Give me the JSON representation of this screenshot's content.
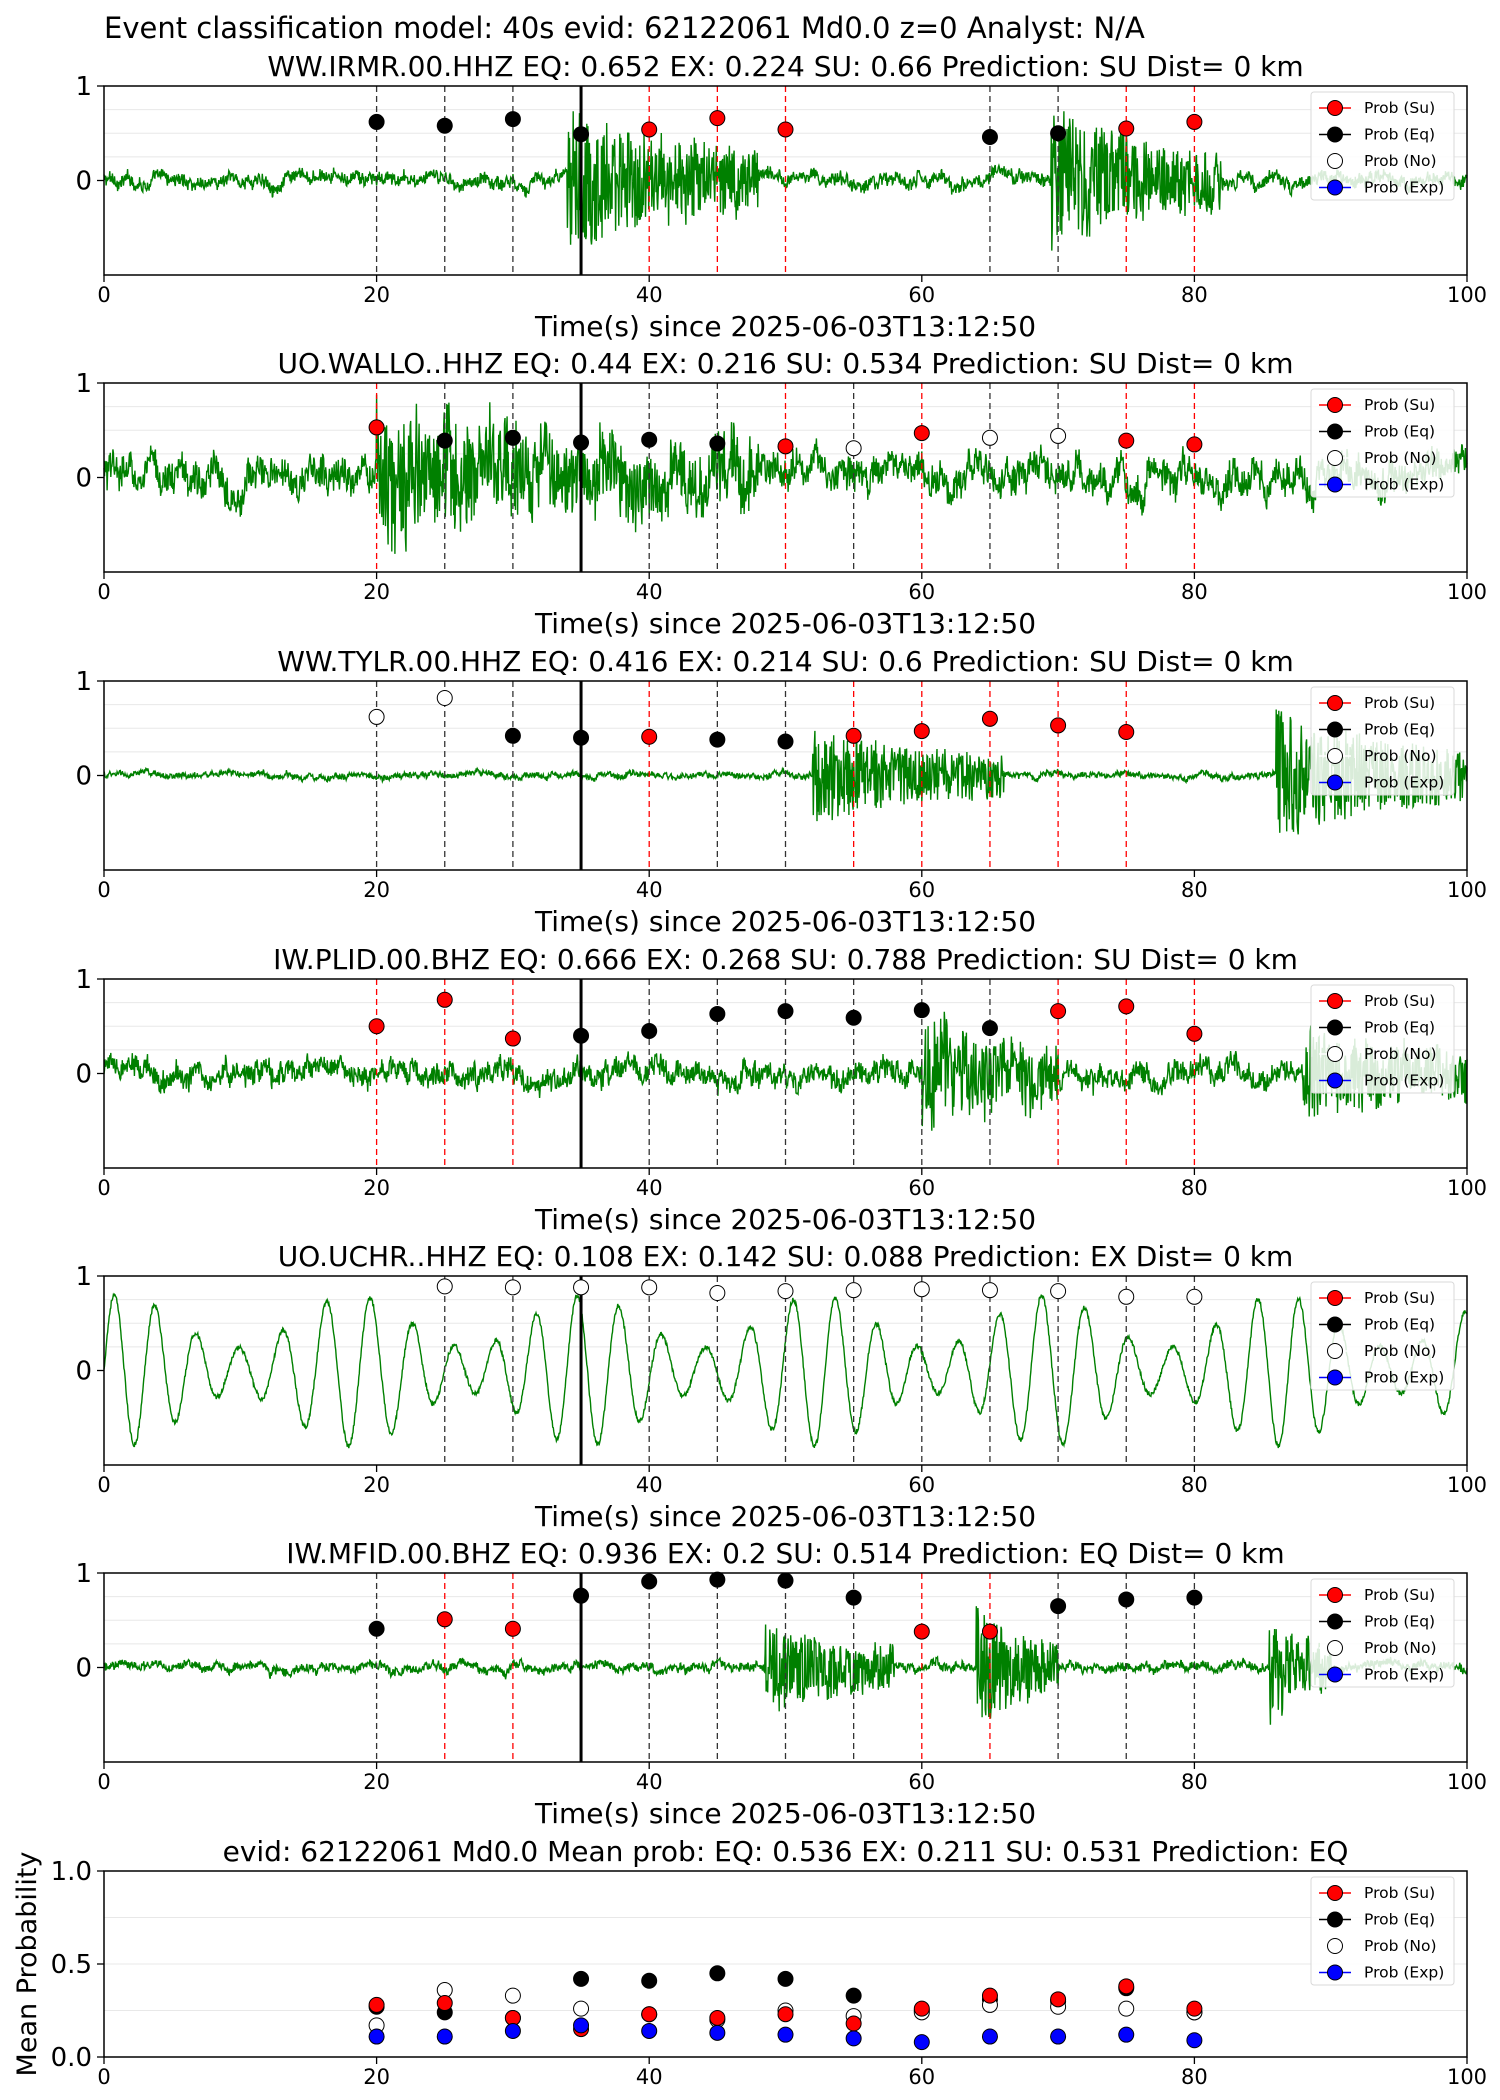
{
  "figure_title": "Event classification model: 40s evid: 62122061 Md0.0 z=0 Analyst: N/A",
  "legend_labels": [
    "Prob (Su)",
    "Prob (Eq)",
    "Prob (No)",
    "Prob (Exp)"
  ],
  "colors": {
    "waveform": "#008000",
    "su": "#ff0000",
    "eq": "#000000",
    "no": "#ffffff",
    "exp": "#0000ff",
    "pick_line": "#000000"
  },
  "chart_data": [
    {
      "type": "line",
      "title": "WW.IRMR.00.HHZ   EQ: 0.652  EX: 0.224  SU: 0.66   Prediction: SU    Dist= 0 km",
      "xlabel": "Time(s) since 2025-06-03T13:12:50",
      "ylabel": "",
      "xlim": [
        0,
        100
      ],
      "ylim": [
        -1,
        1
      ],
      "xticks": [
        "0",
        "20",
        "40",
        "60",
        "80",
        "100"
      ],
      "yticks": [
        "1",
        "0"
      ],
      "pick_time": 35,
      "waveform_noise": 0.09,
      "waveform_bursts": [
        {
          "start": 34.0,
          "end": 48.0,
          "amp": 0.65
        },
        {
          "start": 69.5,
          "end": 82.0,
          "amp": 0.62
        }
      ],
      "prob_points": [
        {
          "t": 20,
          "p": 0.62,
          "cls": "Eq"
        },
        {
          "t": 25,
          "p": 0.58,
          "cls": "Eq"
        },
        {
          "t": 30,
          "p": 0.65,
          "cls": "Eq"
        },
        {
          "t": 35,
          "p": 0.49,
          "cls": "Eq"
        },
        {
          "t": 40,
          "p": 0.54,
          "cls": "Su"
        },
        {
          "t": 45,
          "p": 0.66,
          "cls": "Su"
        },
        {
          "t": 50,
          "p": 0.54,
          "cls": "Su"
        },
        {
          "t": 65,
          "p": 0.46,
          "cls": "Eq"
        },
        {
          "t": 70,
          "p": 0.5,
          "cls": "Eq"
        },
        {
          "t": 75,
          "p": 0.55,
          "cls": "Su"
        },
        {
          "t": 80,
          "p": 0.62,
          "cls": "Su"
        }
      ]
    },
    {
      "type": "line",
      "title": "UO.WALLO..HHZ   EQ: 0.44  EX: 0.216  SU: 0.534   Prediction: SU    Dist= 0 km",
      "xlabel": "Time(s) since 2025-06-03T13:12:50",
      "ylabel": "",
      "xlim": [
        0,
        100
      ],
      "ylim": [
        -1,
        1
      ],
      "xticks": [
        "0",
        "20",
        "40",
        "60",
        "80",
        "100"
      ],
      "yticks": [
        "1",
        "0"
      ],
      "pick_time": 35,
      "waveform_noise": 0.22,
      "waveform_bursts": [
        {
          "start": 20.0,
          "end": 48.0,
          "amp": 0.55
        }
      ],
      "prob_points": [
        {
          "t": 20,
          "p": 0.53,
          "cls": "Su"
        },
        {
          "t": 25,
          "p": 0.39,
          "cls": "Eq"
        },
        {
          "t": 30,
          "p": 0.42,
          "cls": "Eq"
        },
        {
          "t": 35,
          "p": 0.37,
          "cls": "Eq"
        },
        {
          "t": 40,
          "p": 0.4,
          "cls": "Eq"
        },
        {
          "t": 45,
          "p": 0.36,
          "cls": "Eq"
        },
        {
          "t": 50,
          "p": 0.33,
          "cls": "Su"
        },
        {
          "t": 55,
          "p": 0.31,
          "cls": "No"
        },
        {
          "t": 60,
          "p": 0.47,
          "cls": "Su"
        },
        {
          "t": 65,
          "p": 0.42,
          "cls": "No"
        },
        {
          "t": 70,
          "p": 0.44,
          "cls": "No"
        },
        {
          "t": 75,
          "p": 0.39,
          "cls": "Su"
        },
        {
          "t": 80,
          "p": 0.35,
          "cls": "Su"
        }
      ]
    },
    {
      "type": "line",
      "title": "WW.TYLR.00.HHZ   EQ: 0.416  EX: 0.214  SU: 0.6   Prediction: SU    Dist= 0 km",
      "xlabel": "Time(s) since 2025-06-03T13:12:50",
      "ylabel": "",
      "xlim": [
        0,
        100
      ],
      "ylim": [
        -1,
        1
      ],
      "xticks": [
        "0",
        "20",
        "40",
        "60",
        "80",
        "100"
      ],
      "yticks": [
        "1",
        "0"
      ],
      "pick_time": 35,
      "waveform_noise": 0.04,
      "waveform_bursts": [
        {
          "start": 52.0,
          "end": 66.0,
          "amp": 0.45
        },
        {
          "start": 86.0,
          "end": 100.0,
          "amp": 0.6
        }
      ],
      "prob_points": [
        {
          "t": 20,
          "p": 0.62,
          "cls": "No"
        },
        {
          "t": 25,
          "p": 0.82,
          "cls": "No"
        },
        {
          "t": 30,
          "p": 0.42,
          "cls": "Eq"
        },
        {
          "t": 35,
          "p": 0.4,
          "cls": "Eq"
        },
        {
          "t": 40,
          "p": 0.41,
          "cls": "Su"
        },
        {
          "t": 45,
          "p": 0.38,
          "cls": "Eq"
        },
        {
          "t": 50,
          "p": 0.36,
          "cls": "Eq"
        },
        {
          "t": 55,
          "p": 0.42,
          "cls": "Su"
        },
        {
          "t": 60,
          "p": 0.47,
          "cls": "Su"
        },
        {
          "t": 65,
          "p": 0.6,
          "cls": "Su"
        },
        {
          "t": 70,
          "p": 0.53,
          "cls": "Su"
        },
        {
          "t": 75,
          "p": 0.46,
          "cls": "Su"
        }
      ]
    },
    {
      "type": "line",
      "title": "IW.PLID.00.BHZ   EQ: 0.666  EX: 0.268  SU: 0.788   Prediction: SU    Dist= 0 km",
      "xlabel": "Time(s) since 2025-06-03T13:12:50",
      "ylabel": "",
      "xlim": [
        0,
        100
      ],
      "ylim": [
        -1,
        1
      ],
      "xticks": [
        "0",
        "20",
        "40",
        "60",
        "80",
        "100"
      ],
      "yticks": [
        "1",
        "0"
      ],
      "pick_time": 35,
      "waveform_noise": 0.15,
      "waveform_bursts": [
        {
          "start": 60.0,
          "end": 70.0,
          "amp": 0.55
        },
        {
          "start": 88.0,
          "end": 100.0,
          "amp": 0.45
        }
      ],
      "prob_points": [
        {
          "t": 20,
          "p": 0.5,
          "cls": "Su"
        },
        {
          "t": 25,
          "p": 0.78,
          "cls": "Su"
        },
        {
          "t": 30,
          "p": 0.37,
          "cls": "Su"
        },
        {
          "t": 35,
          "p": 0.4,
          "cls": "Eq"
        },
        {
          "t": 40,
          "p": 0.45,
          "cls": "Eq"
        },
        {
          "t": 45,
          "p": 0.63,
          "cls": "Eq"
        },
        {
          "t": 50,
          "p": 0.66,
          "cls": "Eq"
        },
        {
          "t": 55,
          "p": 0.59,
          "cls": "Eq"
        },
        {
          "t": 60,
          "p": 0.67,
          "cls": "Eq"
        },
        {
          "t": 65,
          "p": 0.48,
          "cls": "Eq"
        },
        {
          "t": 70,
          "p": 0.66,
          "cls": "Su"
        },
        {
          "t": 75,
          "p": 0.71,
          "cls": "Su"
        },
        {
          "t": 80,
          "p": 0.42,
          "cls": "Su"
        }
      ]
    },
    {
      "type": "line",
      "title": "UO.UCHR..HHZ   EQ: 0.108  EX: 0.142  SU: 0.088   Prediction: EX    Dist= 0 km",
      "xlabel": "Time(s) since 2025-06-03T13:12:50",
      "ylabel": "",
      "xlim": [
        0,
        100
      ],
      "ylim": [
        -1,
        1
      ],
      "xticks": [
        "0",
        "20",
        "40",
        "60",
        "80",
        "100"
      ],
      "yticks": [
        "1",
        "0"
      ],
      "pick_time": 35,
      "waveform_noise": 0.0,
      "waveform_oscillation": {
        "period": 3.1,
        "amp": 0.8
      },
      "waveform_bursts": [],
      "prob_points": [
        {
          "t": 25,
          "p": 0.89,
          "cls": "No"
        },
        {
          "t": 30,
          "p": 0.88,
          "cls": "No"
        },
        {
          "t": 35,
          "p": 0.88,
          "cls": "No"
        },
        {
          "t": 40,
          "p": 0.88,
          "cls": "No"
        },
        {
          "t": 45,
          "p": 0.82,
          "cls": "No"
        },
        {
          "t": 50,
          "p": 0.84,
          "cls": "No"
        },
        {
          "t": 55,
          "p": 0.85,
          "cls": "No"
        },
        {
          "t": 60,
          "p": 0.86,
          "cls": "No"
        },
        {
          "t": 65,
          "p": 0.85,
          "cls": "No"
        },
        {
          "t": 70,
          "p": 0.84,
          "cls": "No"
        },
        {
          "t": 75,
          "p": 0.78,
          "cls": "No"
        },
        {
          "t": 80,
          "p": 0.78,
          "cls": "No"
        }
      ]
    },
    {
      "type": "line",
      "title": "IW.MFID.00.BHZ   EQ: 0.936  EX: 0.2  SU: 0.514   Prediction: EQ    Dist= 0 km",
      "xlabel": "Time(s) since 2025-06-03T13:12:50",
      "ylabel": "",
      "xlim": [
        0,
        100
      ],
      "ylim": [
        -1,
        1
      ],
      "xticks": [
        "0",
        "20",
        "40",
        "60",
        "80",
        "100"
      ],
      "yticks": [
        "1",
        "0"
      ],
      "pick_time": 35,
      "waveform_noise": 0.06,
      "waveform_bursts": [
        {
          "start": 48.5,
          "end": 58.0,
          "amp": 0.45
        },
        {
          "start": 64.0,
          "end": 70.0,
          "amp": 0.55
        },
        {
          "start": 85.5,
          "end": 90.0,
          "amp": 0.5
        }
      ],
      "prob_points": [
        {
          "t": 20,
          "p": 0.41,
          "cls": "Eq"
        },
        {
          "t": 25,
          "p": 0.51,
          "cls": "Su"
        },
        {
          "t": 30,
          "p": 0.41,
          "cls": "Su"
        },
        {
          "t": 35,
          "p": 0.76,
          "cls": "Eq"
        },
        {
          "t": 40,
          "p": 0.91,
          "cls": "Eq"
        },
        {
          "t": 45,
          "p": 0.93,
          "cls": "Eq"
        },
        {
          "t": 50,
          "p": 0.92,
          "cls": "Eq"
        },
        {
          "t": 55,
          "p": 0.74,
          "cls": "Eq"
        },
        {
          "t": 60,
          "p": 0.38,
          "cls": "Su"
        },
        {
          "t": 65,
          "p": 0.38,
          "cls": "Su"
        },
        {
          "t": 70,
          "p": 0.65,
          "cls": "Eq"
        },
        {
          "t": 75,
          "p": 0.72,
          "cls": "Eq"
        },
        {
          "t": 80,
          "p": 0.74,
          "cls": "Eq"
        }
      ]
    },
    {
      "type": "scatter",
      "title": "evid: 62122061  Md0.0   Mean prob:   EQ: 0.536  EX: 0.211  SU: 0.531   Prediction: EQ",
      "xlabel": "",
      "ylabel": "Mean Probability",
      "xlim": [
        0,
        100
      ],
      "ylim": [
        0,
        1
      ],
      "xticks": [
        "0",
        "20",
        "40",
        "60",
        "80",
        "100"
      ],
      "yticks": [
        "0.0",
        "0.5",
        "1.0"
      ],
      "x": [
        20,
        25,
        30,
        35,
        40,
        45,
        50,
        55,
        60,
        65,
        70,
        75,
        80
      ],
      "series": [
        {
          "name": "Prob (Eq)",
          "values": [
            0.27,
            0.24,
            0.21,
            0.42,
            0.41,
            0.45,
            0.42,
            0.33,
            0.25,
            0.31,
            0.3,
            0.37,
            0.24
          ]
        },
        {
          "name": "Prob (No)",
          "values": [
            0.17,
            0.36,
            0.33,
            0.26,
            0.23,
            0.2,
            0.25,
            0.22,
            0.24,
            0.28,
            0.27,
            0.26,
            0.24
          ]
        },
        {
          "name": "Prob (Su)",
          "values": [
            0.28,
            0.29,
            0.21,
            0.15,
            0.23,
            0.21,
            0.23,
            0.18,
            0.26,
            0.33,
            0.31,
            0.38,
            0.26
          ]
        },
        {
          "name": "Prob (Exp)",
          "values": [
            0.11,
            0.11,
            0.14,
            0.17,
            0.14,
            0.13,
            0.12,
            0.1,
            0.08,
            0.11,
            0.11,
            0.12,
            0.09
          ]
        }
      ]
    }
  ]
}
